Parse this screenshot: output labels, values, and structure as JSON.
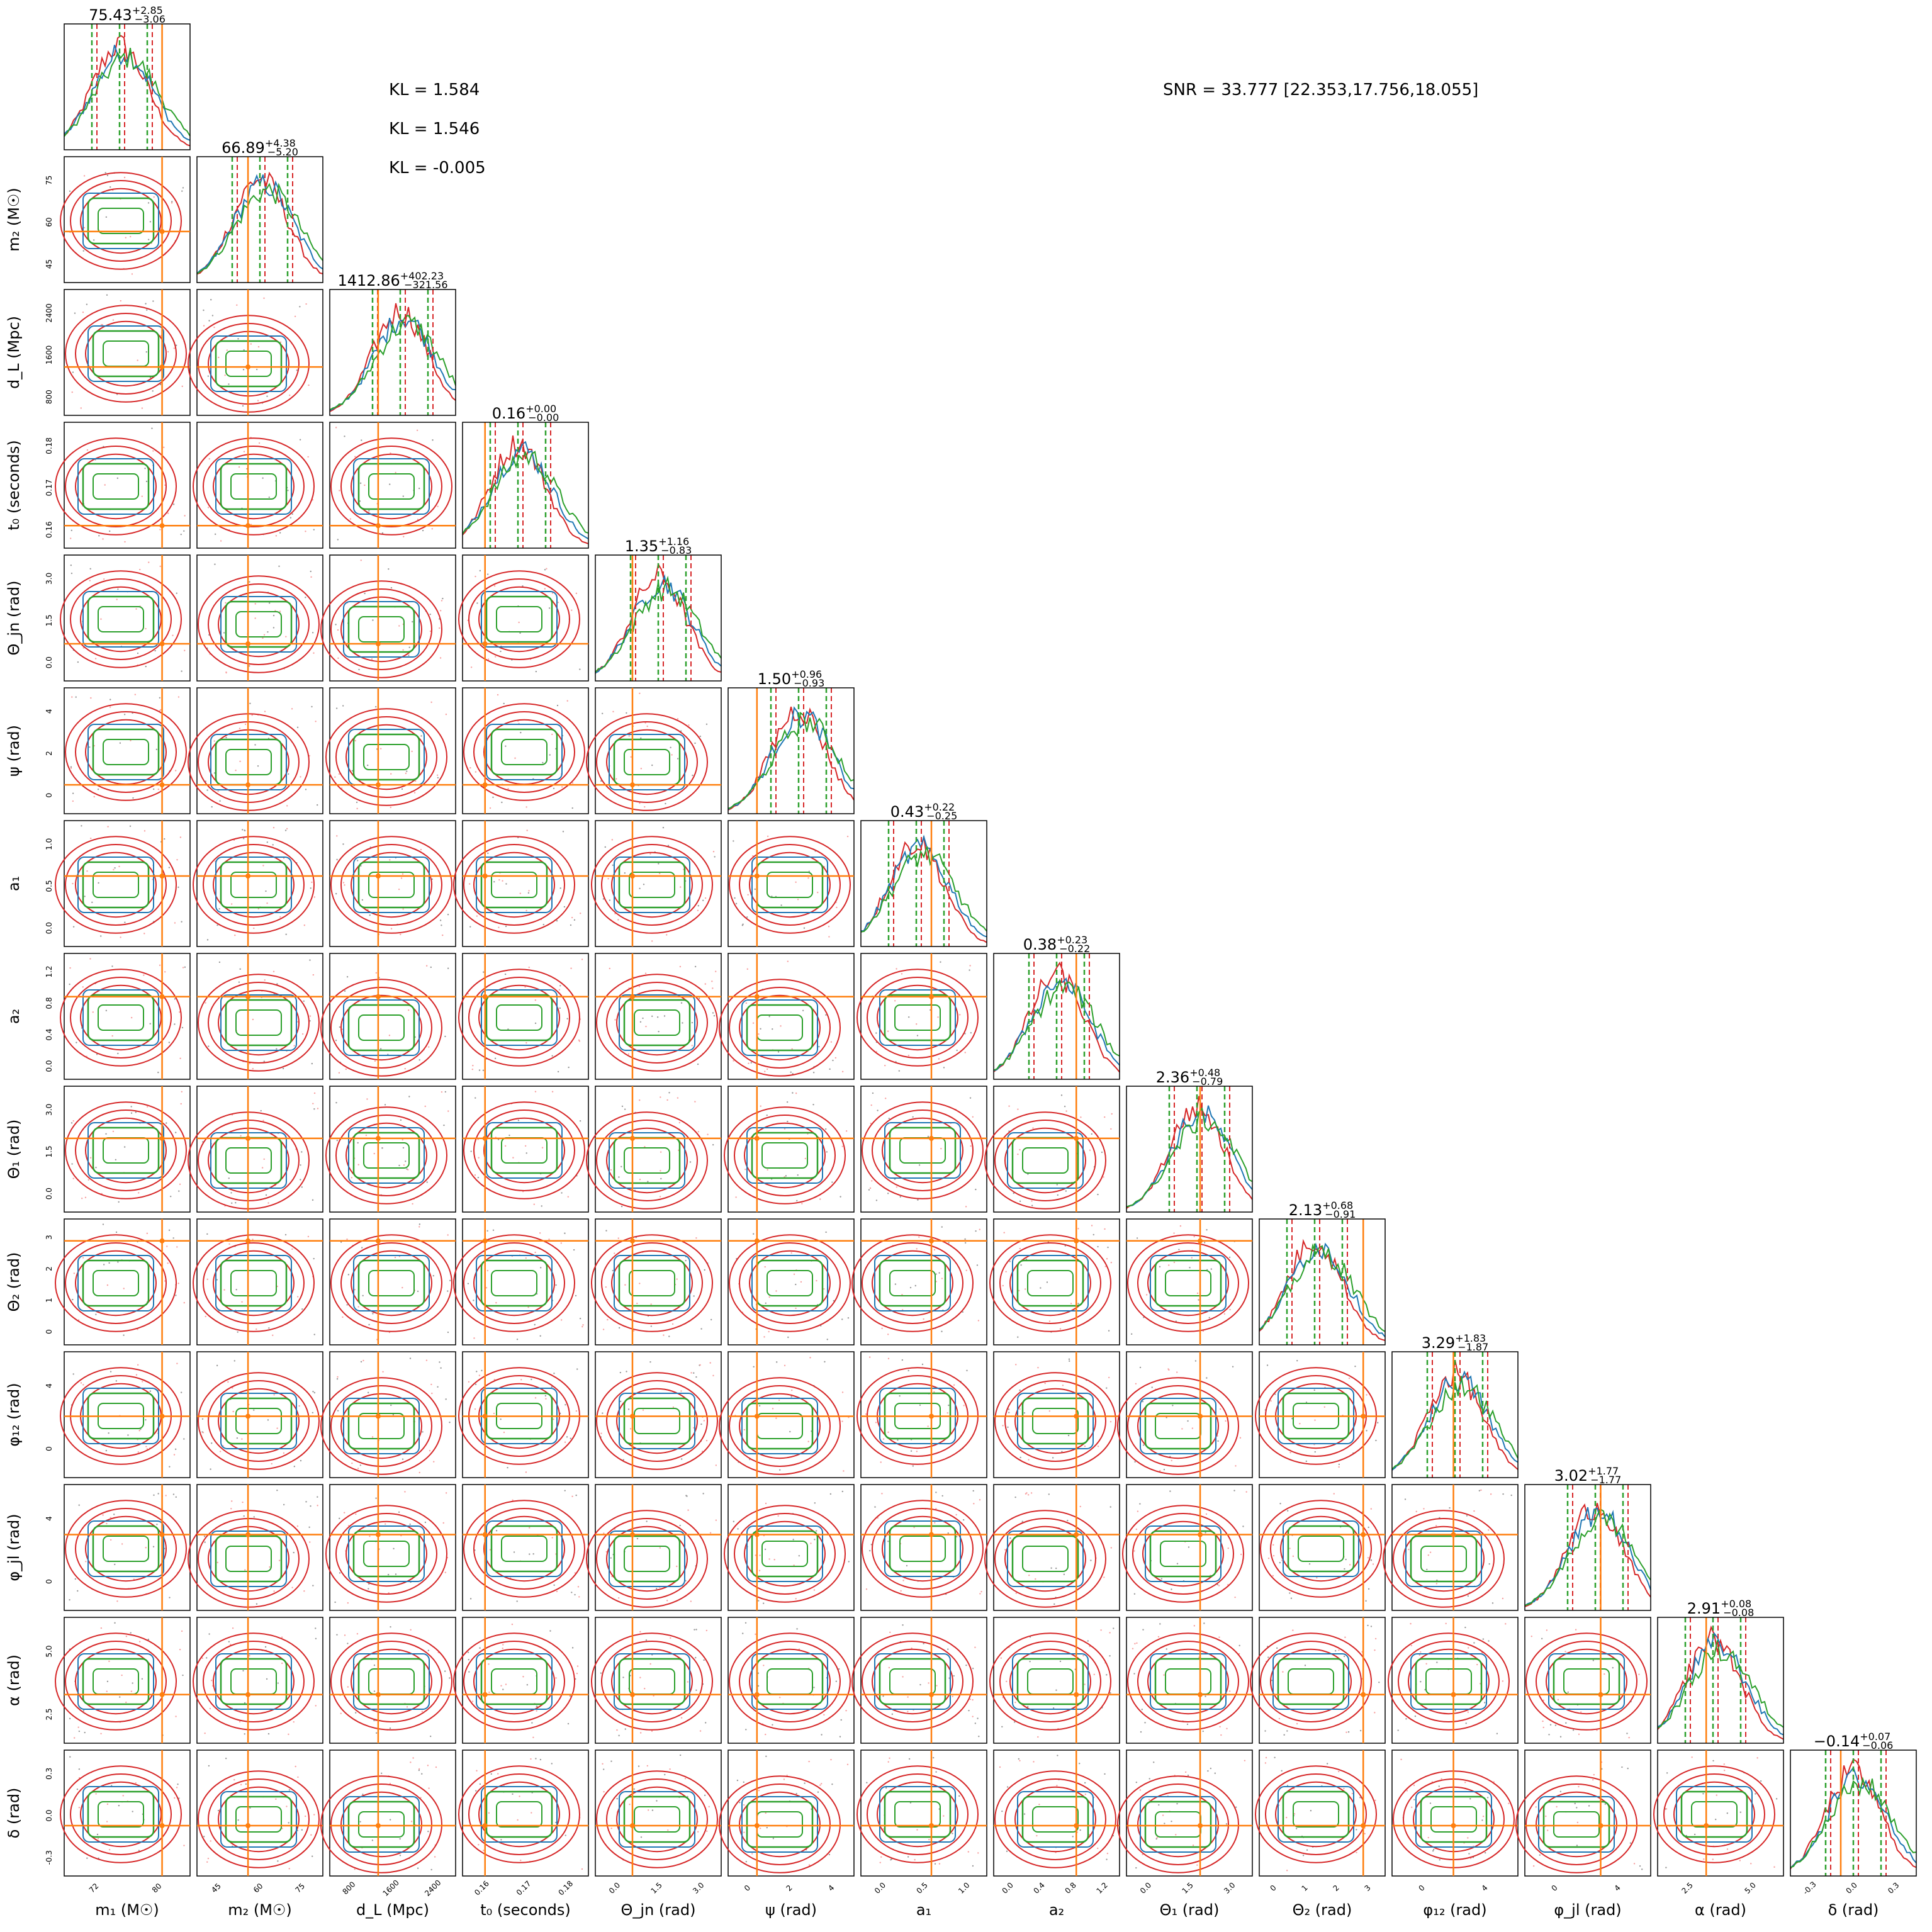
{
  "kl_lines": [
    "KL = 1.584",
    "KL = 1.546",
    "KL = -0.005"
  ],
  "snr_text": "SNR = 33.777 [22.353,17.756,18.055]",
  "colors": {
    "red": "#d62728",
    "blue": "#1f77b4",
    "green": "#2ca02c",
    "orange": "#ff7f0e",
    "gray": "#555555"
  },
  "chart_data": {
    "type": "corner",
    "parameters": [
      {
        "label": "m1",
        "axis_label": "m₁ (M☉)",
        "median": "75.43",
        "plus": "+2.85",
        "minus": "−3.06",
        "range": [
          66,
          84
        ],
        "ticks": [
          "72",
          "80"
        ],
        "truth": 80.0
      },
      {
        "label": "m2",
        "axis_label": "m₂ (M☉)",
        "median": "66.89",
        "plus": "+4.38",
        "minus": "−5.20",
        "range": [
          45,
          82
        ],
        "ticks": [
          "45",
          "60",
          "75"
        ],
        "truth": 60.0
      },
      {
        "label": "dL",
        "axis_label": "d_L (Mpc)",
        "median": "1412.86",
        "plus": "+402.23",
        "minus": "−321.56",
        "range": [
          650,
          2600
        ],
        "ticks": [
          "800",
          "1600",
          "2400"
        ],
        "truth": 1400.0
      },
      {
        "label": "t0",
        "axis_label": "t₀ (seconds)",
        "median": "0.16",
        "plus": "+0.00",
        "minus": "−0.00",
        "range": [
          0.1545,
          0.1825
        ],
        "ticks": [
          "0.16",
          "0.17",
          "0.18"
        ],
        "truth": 0.1595
      },
      {
        "label": "theta_jn",
        "axis_label": "Θ_jn (rad)",
        "median": "1.35",
        "plus": "+1.16",
        "minus": "−0.83",
        "range": [
          -0.4,
          3.5
        ],
        "ticks": [
          "0.0",
          "1.5",
          "3.0"
        ],
        "truth": 0.75
      },
      {
        "label": "psi",
        "axis_label": "ψ (rad)",
        "median": "1.50",
        "plus": "+0.96",
        "minus": "−0.93",
        "range": [
          -0.6,
          4.2
        ],
        "ticks": [
          "0",
          "2",
          "4"
        ],
        "truth": 0.5
      },
      {
        "label": "a1",
        "axis_label": "a₁",
        "median": "0.43",
        "plus": "+0.22",
        "minus": "−0.25",
        "range": [
          -0.2,
          1.05
        ],
        "ticks": [
          "0.0",
          "0.5",
          "1.0"
        ],
        "truth": 0.5
      },
      {
        "label": "a2",
        "axis_label": "a₂",
        "median": "0.38",
        "plus": "+0.23",
        "minus": "−0.22",
        "range": [
          -0.35,
          1.25
        ],
        "ticks": [
          "0.0",
          "0.4",
          "0.8",
          "1.2"
        ],
        "truth": 0.7
      },
      {
        "label": "theta1",
        "axis_label": "Θ₁ (rad)",
        "median": "2.36",
        "plus": "+0.48",
        "minus": "−0.79",
        "range": [
          -0.5,
          3.6
        ],
        "ticks": [
          "0.0",
          "1.5",
          "3.0"
        ],
        "truth": 1.9
      },
      {
        "label": "theta2",
        "axis_label": "Θ₂ (rad)",
        "median": "2.13",
        "plus": "+0.68",
        "minus": "−0.91",
        "range": [
          -0.8,
          3.8
        ],
        "ticks": [
          "0",
          "1",
          "2",
          "3"
        ],
        "truth": 3.0
      },
      {
        "label": "phi12",
        "axis_label": "φ₁₂ (rad)",
        "median": "3.29",
        "plus": "+1.83",
        "minus": "−1.87",
        "range": [
          -1.0,
          7.2
        ],
        "ticks": [
          "0",
          "4"
        ],
        "truth": 3.0
      },
      {
        "label": "phi_jl",
        "axis_label": "φ_jl (rad)",
        "median": "3.02",
        "plus": "+1.77",
        "minus": "−1.77",
        "range": [
          -1.0,
          7.3
        ],
        "ticks": [
          "0",
          "4"
        ],
        "truth": 4.0
      },
      {
        "label": "alpha",
        "axis_label": "α (rad)",
        "median": "2.91",
        "plus": "+0.08",
        "minus": "−0.08",
        "range": [
          0.5,
          6.2
        ],
        "ticks": [
          "2.5",
          "5.0"
        ],
        "truth": 2.7
      },
      {
        "label": "delta",
        "axis_label": "δ (rad)",
        "median": "−0.14",
        "plus": "+0.07",
        "minus": "−0.06",
        "range": [
          -0.45,
          0.45
        ],
        "ticks": [
          "-0.3",
          "0.0",
          "0.3"
        ],
        "truth": -0.09
      }
    ]
  }
}
